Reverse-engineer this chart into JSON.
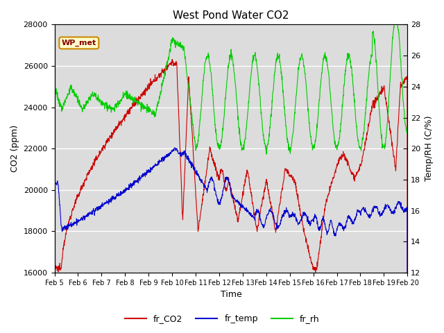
{
  "title": "West Pond Water CO2",
  "xlabel": "Time",
  "ylabel_left": "CO2 (ppm)",
  "ylabel_right": "Temp/RH (C/%)",
  "annotation": "WP_met",
  "ylim_left": [
    16000,
    28000
  ],
  "ylim_right": [
    12,
    28
  ],
  "yticks_left": [
    16000,
    18000,
    20000,
    22000,
    24000,
    26000,
    28000
  ],
  "yticks_right": [
    12,
    14,
    16,
    18,
    20,
    22,
    24,
    26,
    28
  ],
  "xtick_labels": [
    "Feb 5",
    "Feb 6",
    "Feb 7",
    "Feb 8",
    "Feb 9",
    "Feb 10",
    "Feb 11",
    "Feb 12",
    "Feb 13",
    "Feb 14",
    "Feb 15",
    "Feb 16",
    "Feb 17",
    "Feb 18",
    "Feb 19",
    "Feb 20"
  ],
  "colors": {
    "co2": "#cc0000",
    "temp": "#0000cc",
    "rh": "#00cc00",
    "background": "#dcdcdc",
    "annotation_bg": "#ffffcc",
    "annotation_border": "#cc8800"
  },
  "legend": {
    "labels": [
      "fr_CO2",
      "fr_temp",
      "fr_rh"
    ],
    "colors": [
      "#cc0000",
      "#0000cc",
      "#00cc00"
    ]
  }
}
